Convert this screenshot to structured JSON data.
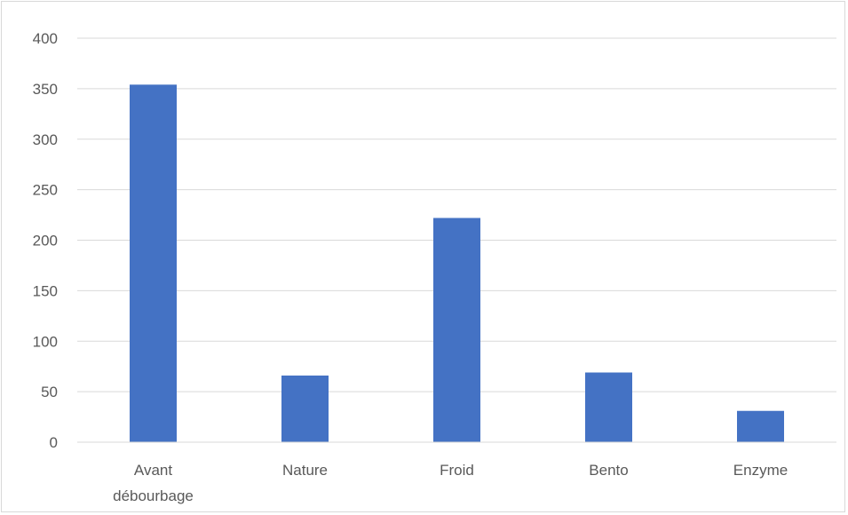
{
  "chart_data": {
    "type": "bar",
    "title": "",
    "xlabel": "",
    "ylabel": "",
    "categories": [
      [
        "Avant",
        "débourbage"
      ],
      [
        "Nature"
      ],
      [
        "Froid"
      ],
      [
        "Bento"
      ],
      [
        "Enzyme"
      ]
    ],
    "values": [
      354,
      66,
      222,
      69,
      31
    ],
    "ylim": [
      0,
      400
    ],
    "yticks": [
      "0",
      "50",
      "100",
      "150",
      "200",
      "250",
      "300",
      "350",
      "400"
    ],
    "grid": true,
    "legend": "none",
    "bar_color": "#4472c4",
    "grid_color": "#d9d9d9",
    "text_color": "#595959"
  }
}
